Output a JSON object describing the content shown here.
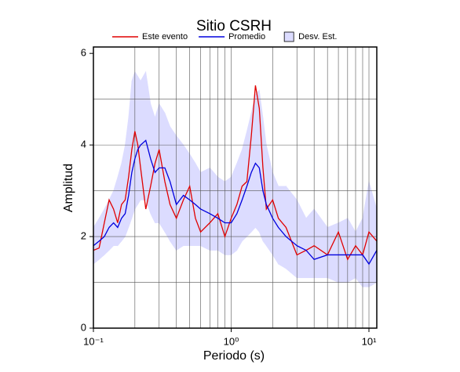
{
  "chart_data": {
    "type": "line",
    "title": "Sitio CSRH",
    "xlabel": "Periodo (s)",
    "ylabel": "Amplitud",
    "xscale": "log",
    "x": [
      0.1,
      0.11,
      0.12,
      0.13,
      0.14,
      0.15,
      0.16,
      0.17,
      0.18,
      0.19,
      0.2,
      0.21,
      0.22,
      0.24,
      0.26,
      0.28,
      0.3,
      0.33,
      0.36,
      0.4,
      0.45,
      0.5,
      0.55,
      0.6,
      0.7,
      0.8,
      0.9,
      1.0,
      1.1,
      1.2,
      1.3,
      1.4,
      1.5,
      1.6,
      1.7,
      1.8,
      2.0,
      2.2,
      2.5,
      3,
      3.5,
      4,
      5,
      6,
      7,
      8,
      9,
      10,
      11.4
    ],
    "series": [
      {
        "name": "Este evento",
        "color": "#e00000",
        "values": [
          1.7,
          1.75,
          2.3,
          2.8,
          2.6,
          2.3,
          2.7,
          2.8,
          3.3,
          3.9,
          4.3,
          4.0,
          3.5,
          2.6,
          3.1,
          3.6,
          3.9,
          3.2,
          2.7,
          2.4,
          2.8,
          3.1,
          2.4,
          2.1,
          2.3,
          2.5,
          2.0,
          2.4,
          2.7,
          3.1,
          3.2,
          4.2,
          5.3,
          4.8,
          3.5,
          2.6,
          2.8,
          2.4,
          2.2,
          1.6,
          1.7,
          1.8,
          1.6,
          2.1,
          1.5,
          1.8,
          1.6,
          2.1,
          1.9
        ]
      },
      {
        "name": "Promedio",
        "color": "#0000dd",
        "values": [
          1.8,
          1.9,
          2.0,
          2.2,
          2.3,
          2.2,
          2.4,
          2.5,
          2.9,
          3.4,
          3.7,
          3.9,
          4.0,
          4.1,
          3.7,
          3.4,
          3.5,
          3.5,
          3.2,
          2.7,
          2.9,
          2.8,
          2.7,
          2.6,
          2.5,
          2.4,
          2.3,
          2.3,
          2.5,
          2.8,
          3.1,
          3.4,
          3.6,
          3.5,
          3.0,
          2.7,
          2.4,
          2.2,
          2.0,
          1.8,
          1.7,
          1.5,
          1.6,
          1.6,
          1.6,
          1.6,
          1.6,
          1.4,
          1.7
        ]
      }
    ],
    "band": {
      "name": "Desv. Est.",
      "color": "#dcdcff",
      "lower": [
        1.4,
        1.5,
        1.6,
        1.7,
        1.8,
        1.8,
        1.9,
        2.0,
        2.2,
        2.4,
        2.6,
        2.7,
        2.8,
        2.8,
        2.5,
        2.3,
        2.3,
        2.1,
        1.9,
        1.7,
        1.8,
        1.8,
        1.8,
        1.8,
        1.7,
        1.7,
        1.6,
        1.6,
        1.7,
        1.9,
        2.0,
        2.1,
        2.2,
        2.1,
        1.9,
        1.8,
        1.6,
        1.4,
        1.3,
        1.1,
        1.1,
        1.1,
        1.1,
        1.0,
        1.0,
        1.1,
        0.9,
        0.9,
        1.0
      ],
      "upper": [
        2.2,
        2.4,
        2.6,
        2.8,
        3.0,
        3.3,
        3.6,
        4.0,
        4.6,
        5.4,
        5.6,
        5.5,
        5.4,
        5.6,
        4.9,
        4.6,
        4.9,
        4.7,
        4.4,
        4.2,
        4.0,
        3.8,
        3.6,
        3.4,
        3.5,
        3.3,
        3.2,
        3.3,
        3.6,
        3.9,
        4.3,
        4.7,
        5.1,
        5.2,
        4.6,
        4.0,
        3.4,
        3.1,
        3.1,
        2.8,
        2.4,
        2.6,
        2.2,
        2.3,
        2.4,
        2.1,
        2.4,
        3.2,
        2.6
      ]
    },
    "xlim": [
      0.1,
      11.4
    ],
    "ylim": [
      0,
      6.14
    ],
    "xticks": [
      {
        "value": 0.1,
        "label": "10⁻¹"
      },
      {
        "value": 1,
        "label": "10⁰"
      },
      {
        "value": 10,
        "label": "10¹"
      }
    ],
    "xgrid": [
      0.2,
      0.3,
      0.4,
      0.5,
      0.6,
      0.7,
      0.8,
      0.9,
      1,
      2,
      3,
      4,
      5,
      6,
      7,
      8,
      9,
      10
    ],
    "yticks": [
      0,
      2,
      4,
      6
    ],
    "ygrid": [
      1,
      2,
      3,
      4,
      5
    ],
    "grid": true
  }
}
